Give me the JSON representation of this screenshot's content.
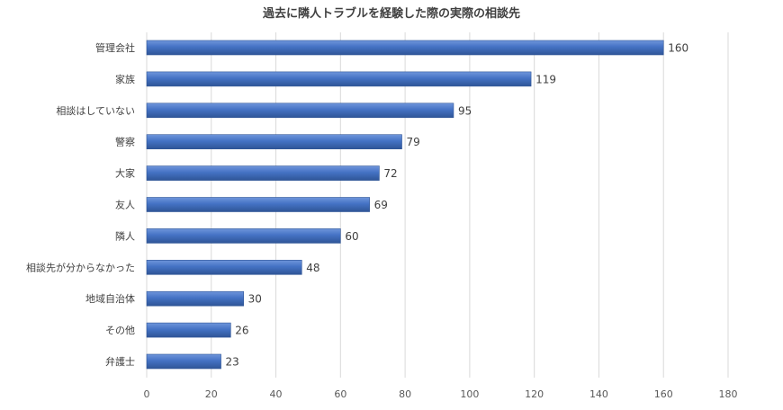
{
  "chart_data": {
    "type": "bar",
    "orientation": "horizontal",
    "title": "過去に隣人トラブルを経験した際の実際の相談先",
    "categories": [
      "管理会社",
      "家族",
      "相談はしていない",
      "警察",
      "大家",
      "友人",
      "隣人",
      "相談先が分からなかった",
      "地域自治体",
      "その他",
      "弁護士"
    ],
    "values": [
      160,
      119,
      95,
      79,
      72,
      69,
      60,
      48,
      30,
      26,
      23
    ],
    "xlim": [
      0,
      180
    ],
    "xticks": [
      0,
      20,
      40,
      60,
      80,
      100,
      120,
      140,
      160,
      180
    ],
    "grid": true,
    "legend": "none",
    "bar_color": "#4472C4",
    "bar_color_dark": "#2F5597"
  }
}
